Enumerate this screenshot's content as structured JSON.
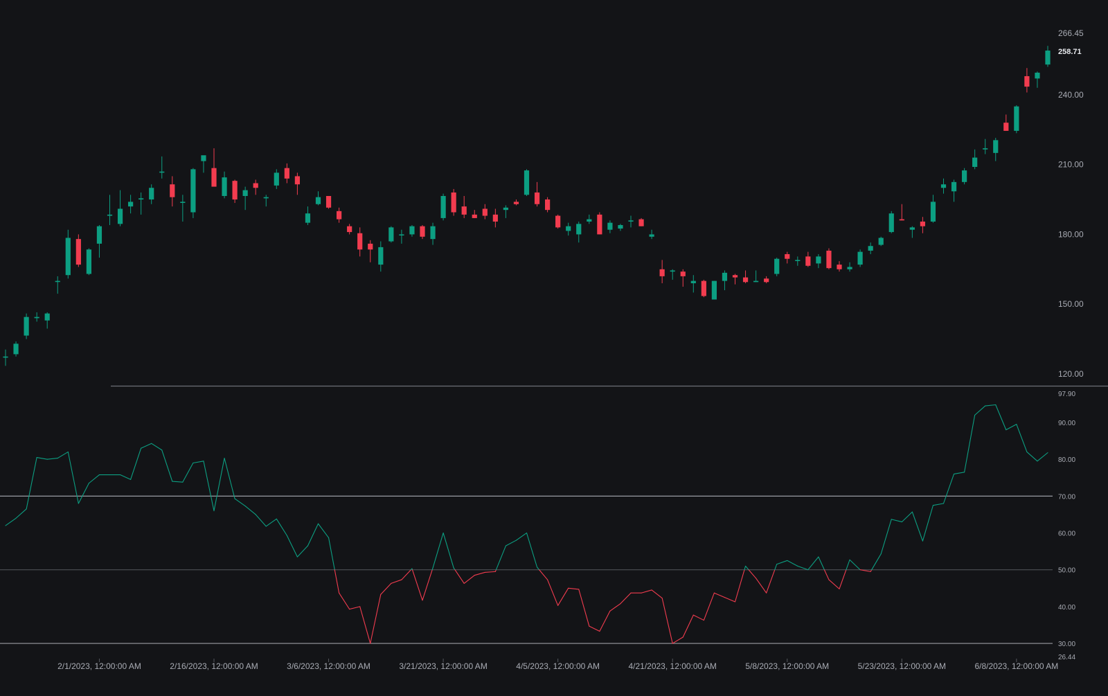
{
  "colors": {
    "background": "#131417",
    "up": "#0c9f82",
    "down": "#f23c4f",
    "axis_text": "#a9acb4",
    "last_price_text": "#e6e8ec",
    "level_line": "#9a9ca3",
    "mid_line": "#55585f",
    "divider": "#6d7077"
  },
  "chart_data": [
    {
      "type": "candlestick",
      "name": "price-chart",
      "ylim": [
        120,
        266.45
      ],
      "y_ticks": [
        "266.45",
        "240.00",
        "210.00",
        "180.00",
        "150.00",
        "120.00"
      ],
      "last_price": "258.71",
      "candles": [
        {
          "o": 127.5,
          "h": 130.5,
          "l": 123.5,
          "c": 127.5
        },
        {
          "o": 128.5,
          "h": 134,
          "l": 127.5,
          "c": 133
        },
        {
          "o": 136.5,
          "h": 146,
          "l": 135,
          "c": 144.5
        },
        {
          "o": 144,
          "h": 146.5,
          "l": 142.5,
          "c": 144.5
        },
        {
          "o": 143,
          "h": 146.5,
          "l": 139.5,
          "c": 146
        },
        {
          "o": 160,
          "h": 162,
          "l": 154.5,
          "c": 160
        },
        {
          "o": 162.5,
          "h": 182,
          "l": 161,
          "c": 178.5
        },
        {
          "o": 178,
          "h": 180,
          "l": 166,
          "c": 167
        },
        {
          "o": 163,
          "h": 174,
          "l": 162.5,
          "c": 173.5
        },
        {
          "o": 176,
          "h": 184,
          "l": 170,
          "c": 183.5
        },
        {
          "o": 188,
          "h": 197,
          "l": 184,
          "c": 188.5
        },
        {
          "o": 184.5,
          "h": 199,
          "l": 183.5,
          "c": 191
        },
        {
          "o": 192,
          "h": 197,
          "l": 189,
          "c": 194
        },
        {
          "o": 195,
          "h": 198,
          "l": 188.5,
          "c": 195.5
        },
        {
          "o": 195,
          "h": 201.5,
          "l": 193,
          "c": 200
        },
        {
          "o": 207,
          "h": 213.5,
          "l": 204,
          "c": 207
        },
        {
          "o": 201.5,
          "h": 205,
          "l": 192,
          "c": 196
        },
        {
          "o": 194,
          "h": 197,
          "l": 185.5,
          "c": 194
        },
        {
          "o": 189.5,
          "h": 208.5,
          "l": 187,
          "c": 208
        },
        {
          "o": 211.5,
          "h": 213,
          "l": 206.5,
          "c": 214
        },
        {
          "o": 208.5,
          "h": 217,
          "l": 200.5,
          "c": 200.5
        },
        {
          "o": 196.5,
          "h": 207,
          "l": 195.5,
          "c": 204.5
        },
        {
          "o": 203,
          "h": 203.5,
          "l": 193.5,
          "c": 195
        },
        {
          "o": 196.5,
          "h": 200.5,
          "l": 190.5,
          "c": 199
        },
        {
          "o": 202,
          "h": 203.5,
          "l": 197,
          "c": 200
        },
        {
          "o": 195.5,
          "h": 197,
          "l": 192,
          "c": 196
        },
        {
          "o": 201,
          "h": 208,
          "l": 199.5,
          "c": 206.5
        },
        {
          "o": 208.5,
          "h": 210.5,
          "l": 202,
          "c": 204
        },
        {
          "o": 205,
          "h": 206.5,
          "l": 197,
          "c": 201.5
        },
        {
          "o": 185,
          "h": 192,
          "l": 184,
          "c": 189
        },
        {
          "o": 193,
          "h": 198.5,
          "l": 192.5,
          "c": 196
        },
        {
          "o": 196.5,
          "h": 196.5,
          "l": 191,
          "c": 191.5
        },
        {
          "o": 190,
          "h": 191.5,
          "l": 185,
          "c": 186.5
        },
        {
          "o": 183.5,
          "h": 184.5,
          "l": 180,
          "c": 181
        },
        {
          "o": 180.5,
          "h": 183,
          "l": 170.5,
          "c": 173.5
        },
        {
          "o": 176,
          "h": 177.5,
          "l": 168,
          "c": 173.5
        },
        {
          "o": 167,
          "h": 177,
          "l": 164,
          "c": 174.5
        },
        {
          "o": 177,
          "h": 183.5,
          "l": 176.5,
          "c": 183
        },
        {
          "o": 180,
          "h": 182,
          "l": 176,
          "c": 180
        },
        {
          "o": 180,
          "h": 184,
          "l": 179,
          "c": 183.5
        },
        {
          "o": 183.5,
          "h": 184,
          "l": 178,
          "c": 179
        },
        {
          "o": 178,
          "h": 185,
          "l": 175.5,
          "c": 183.5
        },
        {
          "o": 187,
          "h": 197.5,
          "l": 186,
          "c": 196.5
        },
        {
          "o": 198,
          "h": 199.5,
          "l": 188,
          "c": 189.5
        },
        {
          "o": 192,
          "h": 196.5,
          "l": 187,
          "c": 188.5
        },
        {
          "o": 188.5,
          "h": 190.5,
          "l": 187,
          "c": 187
        },
        {
          "o": 191,
          "h": 193,
          "l": 186.5,
          "c": 188
        },
        {
          "o": 188.5,
          "h": 191,
          "l": 183,
          "c": 185.5
        },
        {
          "o": 190.5,
          "h": 192.5,
          "l": 187,
          "c": 191.5
        },
        {
          "o": 194,
          "h": 195,
          "l": 192.5,
          "c": 193
        },
        {
          "o": 197,
          "h": 208,
          "l": 196.5,
          "c": 207.5
        },
        {
          "o": 198,
          "h": 202.5,
          "l": 192,
          "c": 193
        },
        {
          "o": 195,
          "h": 196,
          "l": 189.5,
          "c": 190.5
        },
        {
          "o": 188,
          "h": 188.5,
          "l": 182.5,
          "c": 183
        },
        {
          "o": 181.5,
          "h": 185,
          "l": 179.5,
          "c": 183.5
        },
        {
          "o": 180,
          "h": 185.5,
          "l": 176.5,
          "c": 184.5
        },
        {
          "o": 185.5,
          "h": 188.5,
          "l": 184.5,
          "c": 186.5
        },
        {
          "o": 188.5,
          "h": 189.5,
          "l": 180,
          "c": 180
        },
        {
          "o": 182,
          "h": 186,
          "l": 180.5,
          "c": 185
        },
        {
          "o": 182.5,
          "h": 184.5,
          "l": 181.5,
          "c": 184
        },
        {
          "o": 185.5,
          "h": 188,
          "l": 183,
          "c": 186
        },
        {
          "o": 186.5,
          "h": 187,
          "l": 183.5,
          "c": 183.5
        },
        {
          "o": 179,
          "h": 182,
          "l": 178,
          "c": 180
        },
        {
          "o": 165,
          "h": 169,
          "l": 159,
          "c": 162
        },
        {
          "o": 164,
          "h": 165,
          "l": 160.5,
          "c": 164.5
        },
        {
          "o": 164,
          "h": 165,
          "l": 157.5,
          "c": 162
        },
        {
          "o": 159,
          "h": 162.5,
          "l": 155,
          "c": 160
        },
        {
          "o": 160,
          "h": 160.5,
          "l": 153,
          "c": 153.5
        },
        {
          "o": 152,
          "h": 160,
          "l": 152,
          "c": 160
        },
        {
          "o": 160,
          "h": 164.5,
          "l": 156,
          "c": 163.5
        },
        {
          "o": 162.5,
          "h": 163,
          "l": 158.5,
          "c": 161.5
        },
        {
          "o": 161.5,
          "h": 164.5,
          "l": 159,
          "c": 159.5
        },
        {
          "o": 159.5,
          "h": 164.5,
          "l": 159.5,
          "c": 160
        },
        {
          "o": 161,
          "h": 162,
          "l": 159,
          "c": 159.5
        },
        {
          "o": 163,
          "h": 170,
          "l": 162,
          "c": 169.5
        },
        {
          "o": 171.5,
          "h": 172.5,
          "l": 167.5,
          "c": 169.5
        },
        {
          "o": 169,
          "h": 170.5,
          "l": 166.5,
          "c": 169
        },
        {
          "o": 170.5,
          "h": 172.5,
          "l": 166,
          "c": 166.5
        },
        {
          "o": 167.5,
          "h": 171.5,
          "l": 165.5,
          "c": 170.5
        },
        {
          "o": 173,
          "h": 174,
          "l": 165,
          "c": 165.5
        },
        {
          "o": 167,
          "h": 168.5,
          "l": 164,
          "c": 165
        },
        {
          "o": 165,
          "h": 168,
          "l": 164,
          "c": 166
        },
        {
          "o": 167,
          "h": 173.5,
          "l": 166,
          "c": 172.5
        },
        {
          "o": 173,
          "h": 176.5,
          "l": 171.5,
          "c": 175
        },
        {
          "o": 175.5,
          "h": 179,
          "l": 175,
          "c": 178.5
        },
        {
          "o": 181,
          "h": 190,
          "l": 180.5,
          "c": 189
        },
        {
          "o": 186.5,
          "h": 193,
          "l": 186,
          "c": 186
        },
        {
          "o": 182,
          "h": 183.5,
          "l": 178.5,
          "c": 183
        },
        {
          "o": 185.5,
          "h": 187.5,
          "l": 180.5,
          "c": 183.5
        },
        {
          "o": 185.5,
          "h": 197,
          "l": 185,
          "c": 194
        },
        {
          "o": 200,
          "h": 204,
          "l": 197.5,
          "c": 201.5
        },
        {
          "o": 198.5,
          "h": 203.5,
          "l": 194,
          "c": 202.5
        },
        {
          "o": 202.5,
          "h": 208.5,
          "l": 201.5,
          "c": 207.5
        },
        {
          "o": 209,
          "h": 216.5,
          "l": 208,
          "c": 213
        },
        {
          "o": 217,
          "h": 221,
          "l": 214.5,
          "c": 217
        },
        {
          "o": 215,
          "h": 221.5,
          "l": 211.5,
          "c": 220.5
        },
        {
          "o": 228,
          "h": 231.5,
          "l": 224.5,
          "c": 224.5
        },
        {
          "o": 224.5,
          "h": 235.5,
          "l": 223.5,
          "c": 235
        },
        {
          "o": 248,
          "h": 251.5,
          "l": 241,
          "c": 243.5
        },
        {
          "o": 247,
          "h": 250,
          "l": 243,
          "c": 249.5
        },
        {
          "o": 253,
          "h": 261,
          "l": 252,
          "c": 259
        }
      ]
    },
    {
      "type": "line",
      "name": "oscillator",
      "ylim": [
        26.44,
        97.9
      ],
      "y_ticks": [
        "97.90",
        "90.00",
        "80.00",
        "70.00",
        "60.00",
        "50.00",
        "40.00",
        "30.00",
        "26.44"
      ],
      "levels": [
        70,
        50,
        30
      ],
      "threshold": 50,
      "values": [
        62,
        64,
        66.5,
        80.5,
        80,
        80.3,
        82,
        68,
        73.5,
        75.8,
        75.8,
        75.8,
        74.5,
        83,
        84.3,
        82.5,
        74,
        73.8,
        79,
        79.5,
        66,
        80.3,
        69.3,
        67.3,
        65,
        61.8,
        63.8,
        59.3,
        53.5,
        56.5,
        62.5,
        58.7,
        43.7,
        39.3,
        40,
        30,
        43.3,
        46.3,
        47.3,
        50.3,
        41.7,
        50.5,
        60,
        50.5,
        46.3,
        48.5,
        49.3,
        49.5,
        56.5,
        58,
        60,
        50.7,
        47.3,
        40.3,
        45,
        44.7,
        34.7,
        33.3,
        38.8,
        40.8,
        43.7,
        43.7,
        44.5,
        42.3,
        30,
        31.7,
        37.7,
        36.3,
        43.7,
        42.5,
        41.3,
        51,
        47.7,
        43.7,
        51.5,
        52.5,
        51,
        50,
        53.5,
        47.3,
        44.8,
        52.7,
        50,
        49.5,
        54.3,
        63.7,
        63,
        65.7,
        57.8,
        67.5,
        68,
        76,
        76.5,
        92,
        94.5,
        94.8,
        88,
        89.5,
        82,
        79.5,
        81.8
      ]
    }
  ],
  "x_axis": {
    "labels": [
      "2/1/2023, 12:00:00 AM",
      "2/16/2023, 12:00:00 AM",
      "3/6/2023, 12:00:00 AM",
      "3/21/2023, 12:00:00 AM",
      "4/5/2023, 12:00:00 AM",
      "4/21/2023, 12:00:00 AM",
      "5/8/2023, 12:00:00 AM",
      "5/23/2023, 12:00:00 AM",
      "6/8/2023, 12:00:00 AM"
    ],
    "label_candle_index": [
      9,
      20,
      31,
      42,
      53,
      64,
      75,
      86,
      97
    ]
  }
}
